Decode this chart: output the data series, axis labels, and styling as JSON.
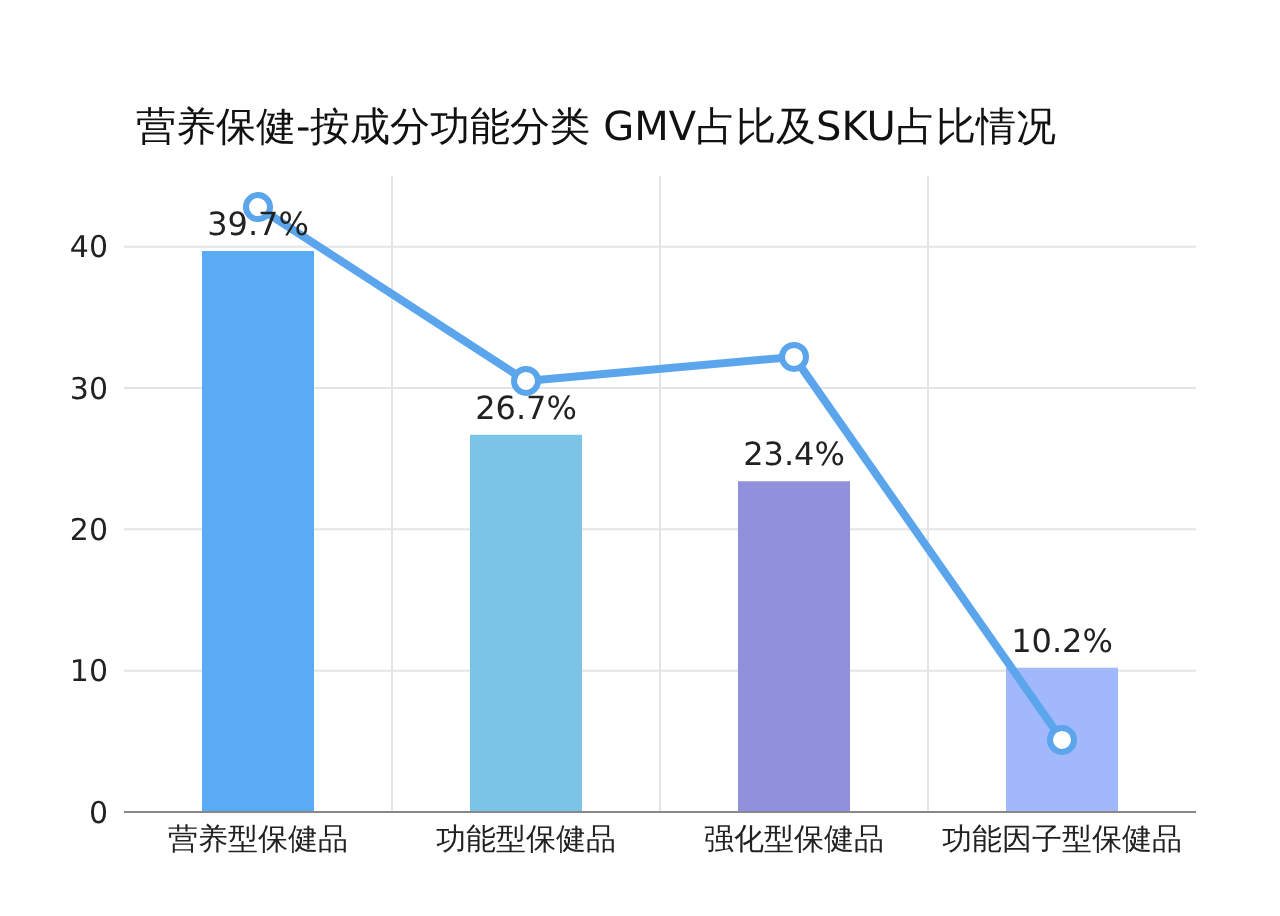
{
  "chart_data": {
    "type": "bar",
    "title": "营养保健-按成分功能分类 GMV占比及SKU占比情况",
    "categories": [
      "营养型保健品",
      "功能型保健品",
      "强化型保健品",
      "功能因子型保健品"
    ],
    "series": [
      {
        "colors": [
          "#5aabf5",
          "#7cc3e8",
          "#9190dc",
          "#a1b8fc"
        ],
        "values": [
          39.7,
          26.7,
          23.4,
          10.2
        ],
        "value_labels": [
          "39.7%",
          "26.7%",
          "23.4%",
          "10.2%"
        ]
      },
      {
        "type": "line",
        "color": "#5aa5ec",
        "values": [
          42.8,
          30.5,
          32.2,
          5.1
        ],
        "marker": "circle"
      }
    ],
    "ylim": [
      0,
      45
    ],
    "yticks": [
      0,
      10,
      20,
      30,
      40
    ],
    "grid": true,
    "legend": false
  }
}
